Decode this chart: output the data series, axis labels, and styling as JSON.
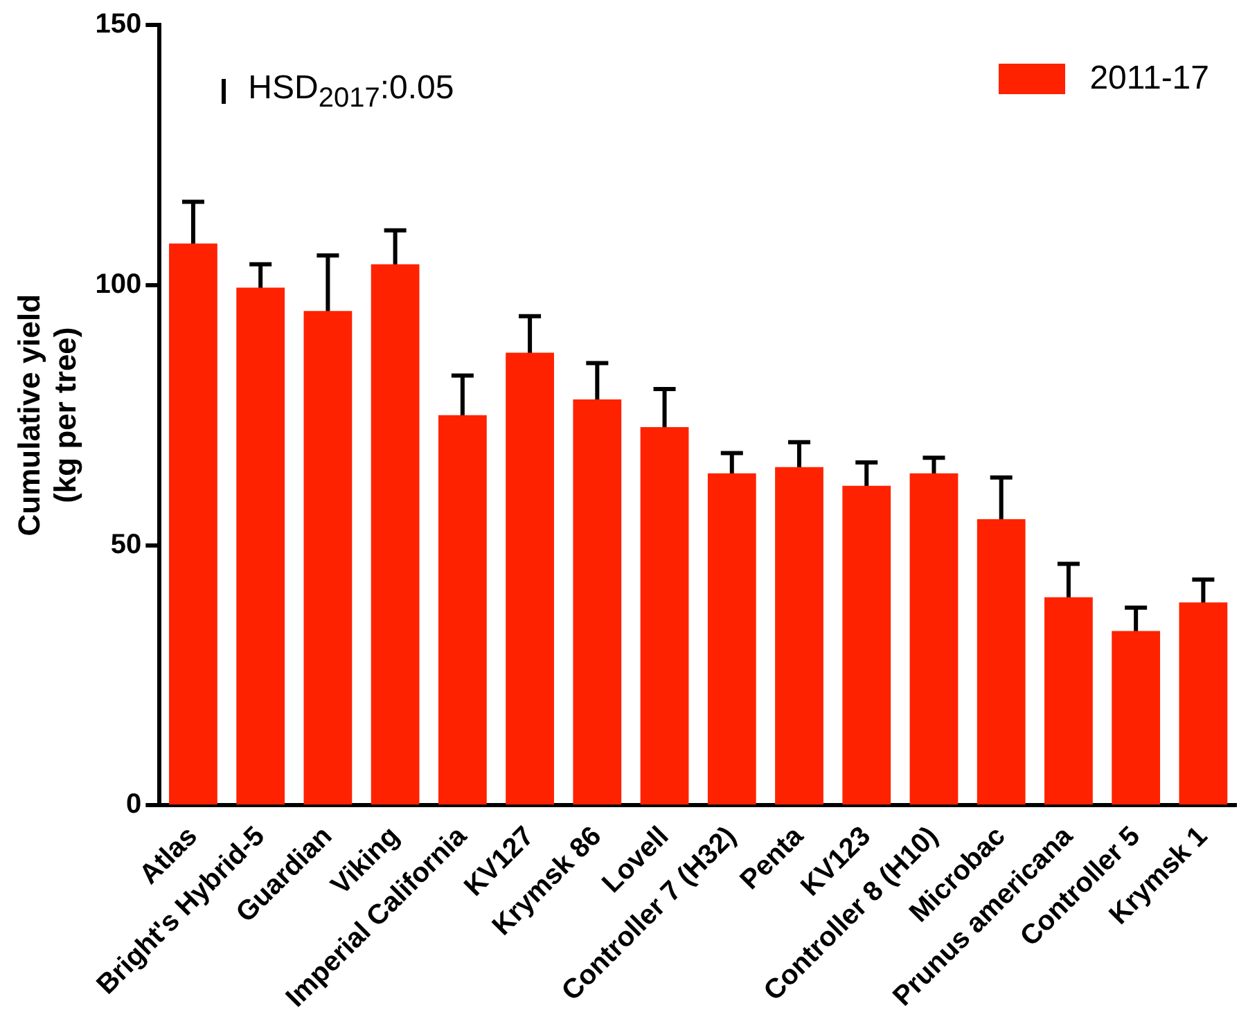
{
  "chart_data": {
    "type": "bar",
    "ylabel": "Cumulative yield\n(kg per tree)",
    "categories": [
      "Atlas",
      "Bright's Hybrid-5",
      "Guardian",
      "Viking",
      "Imperial California",
      "KV127",
      "Krymsk 86",
      "Lovell",
      "Controller 7 (H32)",
      "Penta",
      "KV123",
      "Controller 8 (H10)",
      "Microbac",
      "Prunus americana",
      "Controller 5",
      "Krymsk 1"
    ],
    "series": [
      {
        "name": "2011-17",
        "color": "#ff2200",
        "values": [
          108,
          99.5,
          95,
          104,
          75,
          87,
          78,
          72.7,
          63.8,
          65,
          61.4,
          63.8,
          55,
          40,
          33.5,
          39
        ],
        "errors": [
          8,
          4.5,
          10.7,
          6.5,
          7.6,
          7,
          7,
          7.3,
          3.9,
          4.8,
          4.5,
          3,
          8,
          6.4,
          4.5,
          4.4
        ]
      }
    ],
    "ylim": [
      0,
      150
    ],
    "yticks": [
      0,
      50,
      100,
      150
    ],
    "grid": false,
    "legend": "top right",
    "annotations": [
      "HSD$_{2017}$:0.05"
    ]
  }
}
